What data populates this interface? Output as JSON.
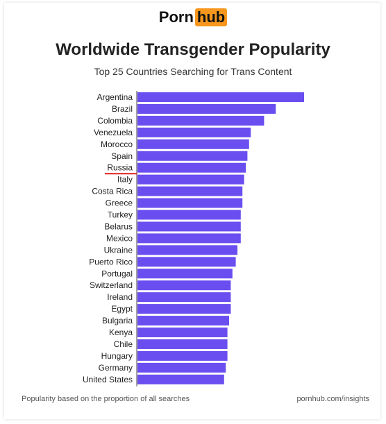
{
  "logo": {
    "part1": "Porn",
    "part2": "hub"
  },
  "footer": {
    "note": "Popularity based on the proportion of all searches",
    "source": "pornhub.com/insights"
  },
  "colors": {
    "bar": "#6a4ef0",
    "highlight_underline": "#e0201c",
    "logo_accent": "#f7971d"
  },
  "chart_data": {
    "type": "bar",
    "orientation": "horizontal",
    "title": "Worldwide Transgender Popularity",
    "subtitle": "Top 25 Countries Searching for Trans Content",
    "xlabel": "",
    "ylabel": "",
    "axis_values_shown": false,
    "grid": false,
    "highlighted_category": "Russia",
    "categories": [
      "Argentina",
      "Brazil",
      "Colombia",
      "Venezuela",
      "Morocco",
      "Spain",
      "Russia",
      "Italy",
      "Costa Rica",
      "Greece",
      "Turkey",
      "Belarus",
      "Mexico",
      "Ukraine",
      "Puerto Rico",
      "Portugal",
      "Switzerland",
      "Ireland",
      "Egypt",
      "Bulgaria",
      "Kenya",
      "Chile",
      "Hungary",
      "Germany",
      "United States"
    ],
    "values": [
      100,
      83,
      76,
      68,
      67,
      66,
      65,
      64,
      63,
      63,
      62,
      62,
      62,
      60,
      59,
      57,
      56,
      56,
      56,
      55,
      54,
      54,
      54,
      53,
      52
    ]
  }
}
